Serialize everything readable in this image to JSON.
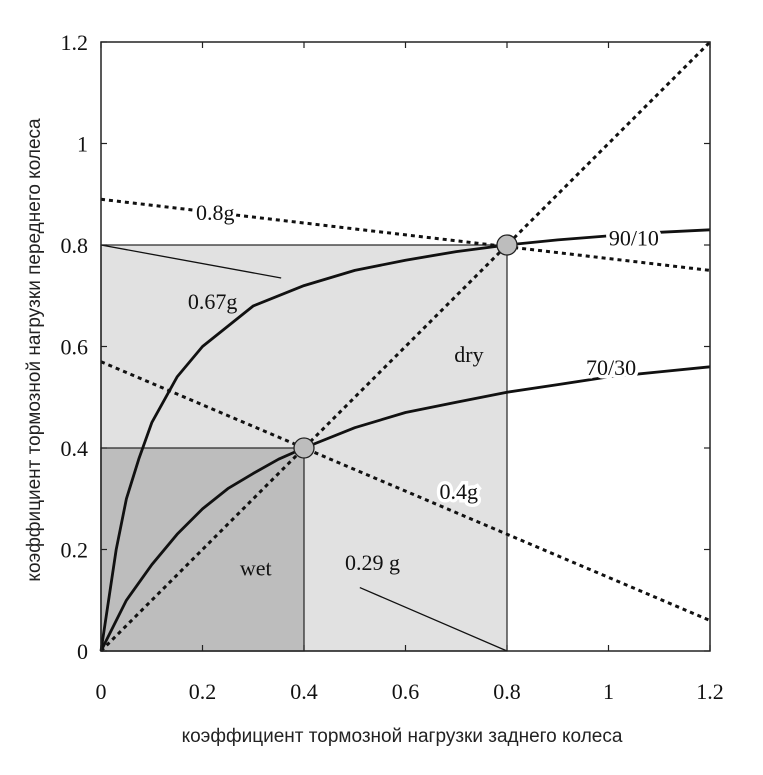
{
  "chart_data": {
    "type": "line",
    "xlabel": "коэффициент тормозной нагрузки заднего колеса",
    "ylabel": "коэффициент тормозной нагрузки переднего колеса",
    "xlim": [
      0,
      1.2
    ],
    "ylim": [
      0,
      1.2
    ],
    "xticks": [
      "0",
      "0.2",
      "0.4",
      "0.6",
      "0.8",
      "1",
      "1.2"
    ],
    "yticks": [
      "0",
      "0.2",
      "0.4",
      "0.6",
      "0.8",
      "1",
      "1.2"
    ],
    "xtick_values": [
      0,
      0.2,
      0.4,
      0.6,
      0.8,
      1.0,
      1.2
    ],
    "ytick_values": [
      0,
      0.2,
      0.4,
      0.6,
      0.8,
      1.0,
      1.2
    ],
    "regions": [
      {
        "name": "dry",
        "label": "dry",
        "x": [
          0,
          0.8
        ],
        "y": [
          0,
          0.8
        ],
        "color": "#e1e1e1"
      },
      {
        "name": "wet",
        "label": "wet",
        "x": [
          0,
          0.4
        ],
        "y": [
          0,
          0.4
        ],
        "color": "#bdbdbd"
      }
    ],
    "series": [
      {
        "name": "90/10",
        "label": "90/10",
        "style": "solid",
        "x": [
          0,
          0.03,
          0.05,
          0.075,
          0.1,
          0.15,
          0.2,
          0.3,
          0.4,
          0.5,
          0.6,
          0.7,
          0.8,
          0.9,
          1.0,
          1.1,
          1.2
        ],
        "y": [
          0,
          0.2,
          0.3,
          0.38,
          0.45,
          0.54,
          0.6,
          0.68,
          0.72,
          0.75,
          0.77,
          0.787,
          0.8,
          0.81,
          0.818,
          0.825,
          0.83
        ]
      },
      {
        "name": "70/30",
        "label": "70/30",
        "style": "solid",
        "x": [
          0,
          0.025,
          0.05,
          0.1,
          0.15,
          0.2,
          0.25,
          0.3,
          0.35,
          0.4,
          0.5,
          0.6,
          0.7,
          0.8,
          0.9,
          1.0,
          1.1,
          1.2
        ],
        "y": [
          0,
          0.05,
          0.1,
          0.17,
          0.23,
          0.28,
          0.32,
          0.35,
          0.378,
          0.4,
          0.44,
          0.47,
          0.49,
          0.51,
          0.525,
          0.54,
          0.55,
          0.56
        ]
      },
      {
        "name": "equal-adhesion",
        "label": "",
        "style": "dotted",
        "x": [
          0,
          1.2
        ],
        "y": [
          0,
          1.2
        ]
      },
      {
        "name": "0.8g",
        "label": "0.8g",
        "style": "dotted",
        "x": [
          0,
          1.2
        ],
        "y": [
          0.89,
          0.75
        ]
      },
      {
        "name": "0.4g",
        "label": "0.4g",
        "style": "dotted",
        "x": [
          0,
          1.2
        ],
        "y": [
          0.57,
          0.06
        ]
      }
    ],
    "points": [
      {
        "name": "dry-point",
        "x": 0.8,
        "y": 0.8
      },
      {
        "name": "wet-point",
        "x": 0.4,
        "y": 0.4
      }
    ],
    "annotations": [
      {
        "name": "0.8g",
        "text": "0.8g",
        "x": 0.225,
        "y": 0.865
      },
      {
        "name": "90/10",
        "text": "90/10",
        "x": 1.05,
        "y": 0.815
      },
      {
        "name": "0.67g",
        "text": "0.67g",
        "x": 0.22,
        "y": 0.69
      },
      {
        "name": "dry",
        "text": "dry",
        "x": 0.725,
        "y": 0.585
      },
      {
        "name": "70/30",
        "text": "70/30",
        "x": 1.005,
        "y": 0.56
      },
      {
        "name": "0.4g",
        "text": "0.4g",
        "x": 0.705,
        "y": 0.315
      },
      {
        "name": "wet",
        "text": "wet",
        "x": 0.305,
        "y": 0.165
      },
      {
        "name": "0.29g",
        "text": "0.29 g",
        "x": 0.535,
        "y": 0.175
      }
    ],
    "leaders": [
      {
        "name": "0.67g-leader",
        "x": [
          0,
          0.355
        ],
        "y": [
          0.8,
          0.735
        ]
      },
      {
        "name": "0.29g-leader",
        "x": [
          0.51,
          0.8
        ],
        "y": [
          0.125,
          0.0
        ]
      }
    ]
  }
}
